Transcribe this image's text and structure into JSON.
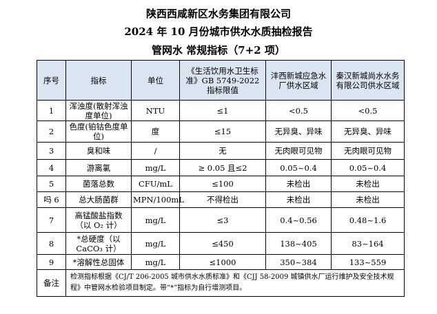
{
  "titles": [
    "陕西西咸新区水务集团有限公司",
    "2024 年 10 月份城市供水水质抽检报告",
    "管网水 常规指标（7+2 项）"
  ],
  "headers": [
    "序号",
    "指标",
    "单位",
    "《生活饮用水卫生标准》GB 5749-2022 指标限值",
    "沣西新城应急水厂供水区域",
    "秦汉新城尚水水务有限公司供水区域"
  ],
  "rows": [
    [
      "1",
      "浑浊度(散射浑浊度单位)",
      "NTU",
      "≤1",
      "<0.5",
      "<0.5"
    ],
    [
      "2",
      "色度(铂钴色度单位)",
      "度",
      "≤15",
      "无异臭、异味",
      "无异臭、异味"
    ],
    [
      "3",
      "臭和味",
      "/",
      "无",
      "无肉眼可见物",
      "无肉眼可见物"
    ],
    [
      "4",
      "游离氯",
      "mg/L",
      "≥ 0.05 且≤2",
      "0.05~0.4",
      "0.05~0.4"
    ],
    [
      "5",
      "菌落总数",
      "CFU/mL",
      "≤100",
      "未检出",
      "未检出"
    ],
    [
      "吗 6",
      "总大肠菌群",
      "MPN/100mL",
      "不得检出",
      "未检出",
      "未检出"
    ],
    [
      "7",
      "高锰酸盐指数（以 O₂ 计）",
      "mg/L",
      "≤3",
      "0.4~0.56",
      "0.48~1.6"
    ],
    [
      "8",
      "*总硬度（以 CaCO₃ 计）",
      "mg/L",
      "≤450",
      "138~405",
      "83~164"
    ],
    [
      "9",
      "*溶解性总固体",
      "mg/L",
      "≤1000",
      "350~384",
      "133~559"
    ]
  ],
  "note_label": "备注",
  "note": "检测指标根据《CJ/T 206-2005 城市供水水质标准》和《CJJ 58-2009 城镇供水厂运行维护及安全技术规程》中管网水检验项目制定。带“*”指标为自行增测项目。",
  "colors": {
    "header_bg": "#dbe5f1"
  }
}
